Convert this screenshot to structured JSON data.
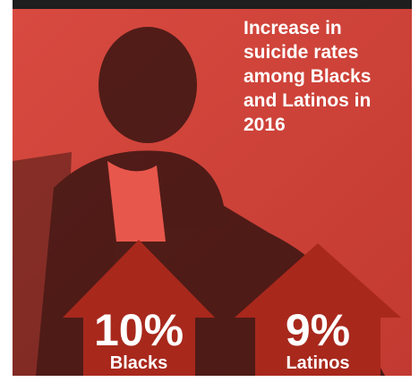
{
  "title_lines": [
    "Increase in",
    "suicide rates",
    "among Blacks",
    "and Latinos in",
    "2016"
  ],
  "stats": [
    {
      "value": "10%",
      "label": "Blacks"
    },
    {
      "value": "9%",
      "label": "Latinos"
    }
  ]
}
